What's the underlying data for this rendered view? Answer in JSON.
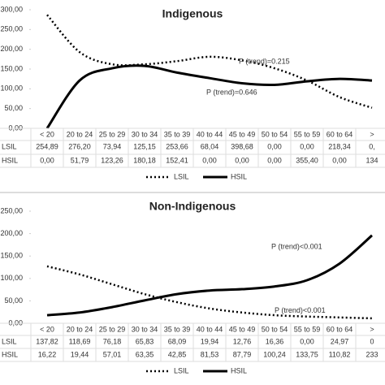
{
  "chart_data": [
    {
      "type": "line",
      "title": "Indigenous",
      "categories": [
        "< 20",
        "20 to 24",
        "25 to 29",
        "30 to 34",
        "35 to 39",
        "40 to 44",
        "45 to 49",
        "50 to 54",
        "55 to 59",
        "60 to 64",
        ">"
      ],
      "ylim": [
        0,
        300
      ],
      "yticks": [
        {
          "value": 0,
          "label": "0,00"
        },
        {
          "value": 50,
          "label": "50,00"
        },
        {
          "value": 100,
          "label": "100,00"
        },
        {
          "value": 150,
          "label": "150,00"
        },
        {
          "value": 200,
          "label": "200,00"
        },
        {
          "value": 250,
          "label": "250,00"
        },
        {
          "value": 300,
          "label": "300,00"
        }
      ],
      "series": [
        {
          "name": "LSIL",
          "color": "#000000",
          "dash": true,
          "values": [
            287,
            193,
            162,
            162,
            170,
            181,
            172,
            152,
            121,
            79,
            52
          ]
        },
        {
          "name": "HSIL",
          "color": "#000000",
          "dash": false,
          "values": [
            0,
            121,
            152,
            158,
            141,
            127,
            114,
            110,
            119,
            125,
            121
          ]
        }
      ],
      "annotations": [
        {
          "text": "P (trend)=0.215",
          "x": 6.9,
          "y": 168
        },
        {
          "text": "P (trend)=0.646",
          "x": 5.9,
          "y": 90
        }
      ],
      "table": [
        {
          "name": "LSIL",
          "cells": [
            "254,89",
            "276,20",
            "73,94",
            "125,15",
            "253,66",
            "68,04",
            "398,68",
            "0,00",
            "0,00",
            "218,34",
            "0,"
          ]
        },
        {
          "name": "HSIL",
          "cells": [
            "0,00",
            "51,79",
            "123,26",
            "180,18",
            "152,41",
            "0,00",
            "0,00",
            "0,00",
            "355,40",
            "0,00",
            "134"
          ]
        }
      ]
    },
    {
      "type": "line",
      "title": "Non-Indigenous",
      "categories": [
        "< 20",
        "20 to 24",
        "25 to 29",
        "30 to 34",
        "35 to 39",
        "40 to 44",
        "45 to 49",
        "50 to 54",
        "55 to 59",
        "60 to 64",
        ">"
      ],
      "ylim": [
        0,
        250
      ],
      "yticks": [
        {
          "value": 0,
          "label": "0,00"
        },
        {
          "value": 50,
          "label": "50,00"
        },
        {
          "value": 100,
          "label": "100,00"
        },
        {
          "value": 150,
          "label": "150,00"
        },
        {
          "value": 200,
          "label": "200,00"
        },
        {
          "value": 250,
          "label": "250,00"
        }
      ],
      "series": [
        {
          "name": "LSIL",
          "color": "#000000",
          "dash": true,
          "values": [
            127,
            109,
            87,
            65,
            47,
            33,
            24,
            18,
            15,
            13,
            11
          ]
        },
        {
          "name": "HSIL",
          "color": "#000000",
          "dash": false,
          "values": [
            18,
            24,
            36,
            51,
            65,
            73,
            76,
            82,
            96,
            133,
            196
          ]
        }
      ],
      "annotations": [
        {
          "text": "P (trend)<0.001",
          "x": 7.9,
          "y": 170
        },
        {
          "text": "P (trend)<0.001",
          "x": 8.0,
          "y": 28
        }
      ],
      "table": [
        {
          "name": "LSIL",
          "cells": [
            "137,82",
            "118,69",
            "76,18",
            "65,83",
            "68,09",
            "19,94",
            "12,76",
            "16,36",
            "0,00",
            "24,97",
            "0"
          ]
        },
        {
          "name": "HSIL",
          "cells": [
            "16,22",
            "19,44",
            "57,01",
            "63,35",
            "42,85",
            "81,53",
            "87,79",
            "100,24",
            "133,75",
            "110,82",
            "233"
          ]
        }
      ]
    }
  ]
}
